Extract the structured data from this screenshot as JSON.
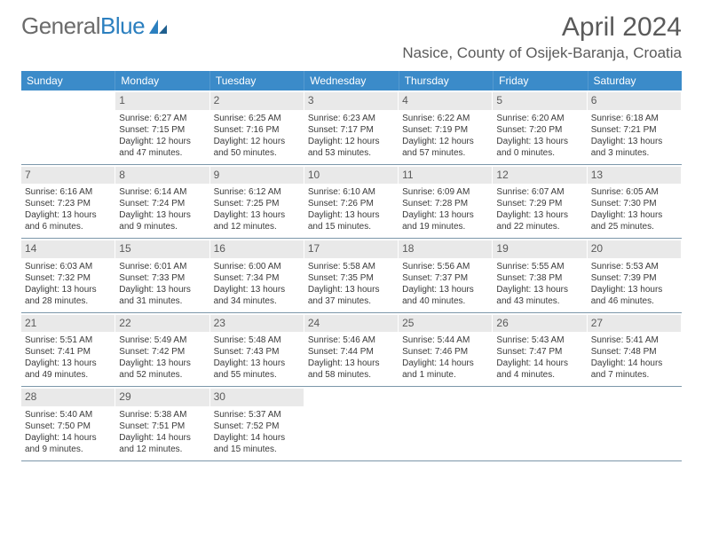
{
  "logo": {
    "text1": "General",
    "text2": "Blue"
  },
  "title": {
    "month": "April 2024",
    "location": "Nasice, County of Osijek-Baranja, Croatia"
  },
  "colors": {
    "header_bg": "#3b8bc9",
    "header_text": "#ffffff",
    "daynum_bg": "#e9e9e9",
    "text": "#3a3a3a",
    "rule": "#7c97aa"
  },
  "day_names": [
    "Sunday",
    "Monday",
    "Tuesday",
    "Wednesday",
    "Thursday",
    "Friday",
    "Saturday"
  ],
  "weeks": [
    [
      {
        "num": "",
        "lines": []
      },
      {
        "num": "1",
        "lines": [
          "Sunrise: 6:27 AM",
          "Sunset: 7:15 PM",
          "Daylight: 12 hours",
          "and 47 minutes."
        ]
      },
      {
        "num": "2",
        "lines": [
          "Sunrise: 6:25 AM",
          "Sunset: 7:16 PM",
          "Daylight: 12 hours",
          "and 50 minutes."
        ]
      },
      {
        "num": "3",
        "lines": [
          "Sunrise: 6:23 AM",
          "Sunset: 7:17 PM",
          "Daylight: 12 hours",
          "and 53 minutes."
        ]
      },
      {
        "num": "4",
        "lines": [
          "Sunrise: 6:22 AM",
          "Sunset: 7:19 PM",
          "Daylight: 12 hours",
          "and 57 minutes."
        ]
      },
      {
        "num": "5",
        "lines": [
          "Sunrise: 6:20 AM",
          "Sunset: 7:20 PM",
          "Daylight: 13 hours",
          "and 0 minutes."
        ]
      },
      {
        "num": "6",
        "lines": [
          "Sunrise: 6:18 AM",
          "Sunset: 7:21 PM",
          "Daylight: 13 hours",
          "and 3 minutes."
        ]
      }
    ],
    [
      {
        "num": "7",
        "lines": [
          "Sunrise: 6:16 AM",
          "Sunset: 7:23 PM",
          "Daylight: 13 hours",
          "and 6 minutes."
        ]
      },
      {
        "num": "8",
        "lines": [
          "Sunrise: 6:14 AM",
          "Sunset: 7:24 PM",
          "Daylight: 13 hours",
          "and 9 minutes."
        ]
      },
      {
        "num": "9",
        "lines": [
          "Sunrise: 6:12 AM",
          "Sunset: 7:25 PM",
          "Daylight: 13 hours",
          "and 12 minutes."
        ]
      },
      {
        "num": "10",
        "lines": [
          "Sunrise: 6:10 AM",
          "Sunset: 7:26 PM",
          "Daylight: 13 hours",
          "and 15 minutes."
        ]
      },
      {
        "num": "11",
        "lines": [
          "Sunrise: 6:09 AM",
          "Sunset: 7:28 PM",
          "Daylight: 13 hours",
          "and 19 minutes."
        ]
      },
      {
        "num": "12",
        "lines": [
          "Sunrise: 6:07 AM",
          "Sunset: 7:29 PM",
          "Daylight: 13 hours",
          "and 22 minutes."
        ]
      },
      {
        "num": "13",
        "lines": [
          "Sunrise: 6:05 AM",
          "Sunset: 7:30 PM",
          "Daylight: 13 hours",
          "and 25 minutes."
        ]
      }
    ],
    [
      {
        "num": "14",
        "lines": [
          "Sunrise: 6:03 AM",
          "Sunset: 7:32 PM",
          "Daylight: 13 hours",
          "and 28 minutes."
        ]
      },
      {
        "num": "15",
        "lines": [
          "Sunrise: 6:01 AM",
          "Sunset: 7:33 PM",
          "Daylight: 13 hours",
          "and 31 minutes."
        ]
      },
      {
        "num": "16",
        "lines": [
          "Sunrise: 6:00 AM",
          "Sunset: 7:34 PM",
          "Daylight: 13 hours",
          "and 34 minutes."
        ]
      },
      {
        "num": "17",
        "lines": [
          "Sunrise: 5:58 AM",
          "Sunset: 7:35 PM",
          "Daylight: 13 hours",
          "and 37 minutes."
        ]
      },
      {
        "num": "18",
        "lines": [
          "Sunrise: 5:56 AM",
          "Sunset: 7:37 PM",
          "Daylight: 13 hours",
          "and 40 minutes."
        ]
      },
      {
        "num": "19",
        "lines": [
          "Sunrise: 5:55 AM",
          "Sunset: 7:38 PM",
          "Daylight: 13 hours",
          "and 43 minutes."
        ]
      },
      {
        "num": "20",
        "lines": [
          "Sunrise: 5:53 AM",
          "Sunset: 7:39 PM",
          "Daylight: 13 hours",
          "and 46 minutes."
        ]
      }
    ],
    [
      {
        "num": "21",
        "lines": [
          "Sunrise: 5:51 AM",
          "Sunset: 7:41 PM",
          "Daylight: 13 hours",
          "and 49 minutes."
        ]
      },
      {
        "num": "22",
        "lines": [
          "Sunrise: 5:49 AM",
          "Sunset: 7:42 PM",
          "Daylight: 13 hours",
          "and 52 minutes."
        ]
      },
      {
        "num": "23",
        "lines": [
          "Sunrise: 5:48 AM",
          "Sunset: 7:43 PM",
          "Daylight: 13 hours",
          "and 55 minutes."
        ]
      },
      {
        "num": "24",
        "lines": [
          "Sunrise: 5:46 AM",
          "Sunset: 7:44 PM",
          "Daylight: 13 hours",
          "and 58 minutes."
        ]
      },
      {
        "num": "25",
        "lines": [
          "Sunrise: 5:44 AM",
          "Sunset: 7:46 PM",
          "Daylight: 14 hours",
          "and 1 minute."
        ]
      },
      {
        "num": "26",
        "lines": [
          "Sunrise: 5:43 AM",
          "Sunset: 7:47 PM",
          "Daylight: 14 hours",
          "and 4 minutes."
        ]
      },
      {
        "num": "27",
        "lines": [
          "Sunrise: 5:41 AM",
          "Sunset: 7:48 PM",
          "Daylight: 14 hours",
          "and 7 minutes."
        ]
      }
    ],
    [
      {
        "num": "28",
        "lines": [
          "Sunrise: 5:40 AM",
          "Sunset: 7:50 PM",
          "Daylight: 14 hours",
          "and 9 minutes."
        ]
      },
      {
        "num": "29",
        "lines": [
          "Sunrise: 5:38 AM",
          "Sunset: 7:51 PM",
          "Daylight: 14 hours",
          "and 12 minutes."
        ]
      },
      {
        "num": "30",
        "lines": [
          "Sunrise: 5:37 AM",
          "Sunset: 7:52 PM",
          "Daylight: 14 hours",
          "and 15 minutes."
        ]
      },
      {
        "num": "",
        "lines": []
      },
      {
        "num": "",
        "lines": []
      },
      {
        "num": "",
        "lines": []
      },
      {
        "num": "",
        "lines": []
      }
    ]
  ]
}
